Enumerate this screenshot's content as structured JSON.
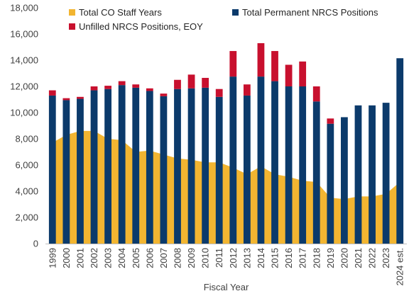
{
  "chart_data": {
    "type": "bar",
    "xlabel": "Fiscal Year",
    "ylabel": "",
    "ylim": [
      0,
      18000
    ],
    "yticks": [
      "0",
      "2,000",
      "4,000",
      "6,000",
      "8,000",
      "10,000",
      "12,000",
      "14,000",
      "16,000",
      "18,000"
    ],
    "ytick_values": [
      0,
      2000,
      4000,
      6000,
      8000,
      10000,
      12000,
      14000,
      16000,
      18000
    ],
    "grid": false,
    "legend_position": "top",
    "categories": [
      "1999",
      "2000",
      "2001",
      "2002",
      "2003",
      "2004",
      "2005",
      "2006",
      "2007",
      "2008",
      "2009",
      "2010",
      "2011",
      "2012",
      "2013",
      "2014",
      "2015",
      "2016",
      "2017",
      "2018",
      "2019",
      "2020",
      "2021",
      "2022",
      "2023",
      "2024 est."
    ],
    "series": [
      {
        "name": "Total CO Staff Years",
        "kind": "area",
        "color": "#F2B531",
        "values": [
          7700,
          8300,
          8600,
          8600,
          8000,
          7900,
          7000,
          7100,
          6800,
          6500,
          6400,
          6200,
          6200,
          5800,
          5300,
          5900,
          5300,
          5100,
          4800,
          4700,
          3500,
          3400,
          3600,
          3600,
          3800,
          4700
        ]
      },
      {
        "name": "Total Permanent NRCS Positions",
        "kind": "stacked-bar",
        "color": "#0B3A6B",
        "values": [
          11300,
          10950,
          11050,
          11700,
          11800,
          12100,
          11900,
          11650,
          11250,
          11800,
          11850,
          11900,
          11200,
          12750,
          11300,
          12750,
          12400,
          12000,
          12000,
          10850,
          9150,
          9650,
          10550,
          10550,
          10750,
          14150
        ]
      },
      {
        "name": "Unfilled NRCS Positions, EOY",
        "kind": "stacked-bar",
        "color": "#C8102E",
        "values": [
          400,
          150,
          150,
          300,
          250,
          300,
          250,
          200,
          200,
          700,
          1050,
          750,
          600,
          1950,
          850,
          2550,
          2300,
          1650,
          1900,
          1150,
          400,
          0,
          0,
          0,
          0,
          0
        ]
      }
    ]
  }
}
